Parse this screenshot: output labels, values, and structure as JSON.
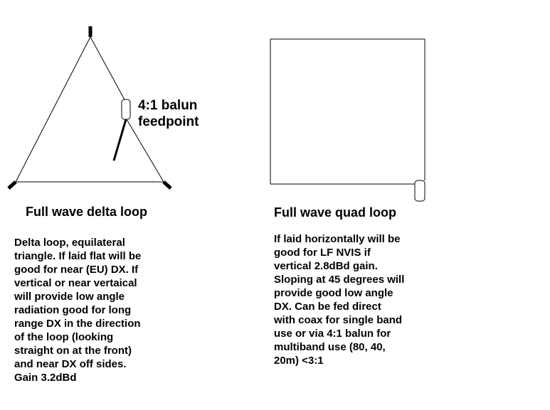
{
  "balun_label": {
    "line1": "4:1 balun",
    "line2": "feedpoint"
  },
  "delta_loop": {
    "title": "Full wave delta loop",
    "description_lines": [
      "Delta loop, equilateral",
      "triangle. If laid flat will be",
      "good for near (EU) DX. If",
      "vertical or near vertaical",
      "will provide low angle",
      "radiation good for long",
      "range DX in the direction",
      "of the loop (looking",
      "straight on at the front)",
      "and near DX off sides.",
      "Gain 3.2dBd"
    ]
  },
  "quad_loop": {
    "title": "Full wave quad loop",
    "description_lines": [
      "If laid horizontally will be",
      "good for LF NVIS if",
      "vertical 2.8dBd gain.",
      "Sloping at 45 degrees will",
      "provide good low angle",
      "DX. Can be fed direct",
      "with coax for single band",
      "use or via 4:1 balun for",
      "multiband use (80, 40,",
      "20m) <3:1"
    ]
  },
  "colors": {
    "line": "#000000",
    "background": "#ffffff"
  }
}
